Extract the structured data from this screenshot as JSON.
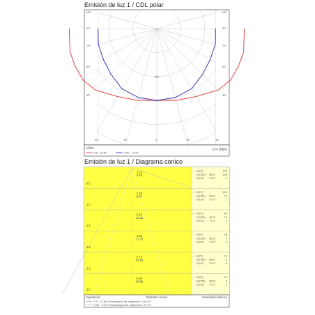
{
  "polar": {
    "title": "Emisión de luz 1 / CDL polar",
    "unit": "cd/klm",
    "efficiency": "η = 106%",
    "angle_labels": [
      "105°",
      "105°",
      "90°",
      "90°",
      "75°",
      "75°",
      "60°",
      "60°",
      "45°",
      "45°",
      "30°",
      "15°",
      "0°",
      "15°",
      "30°"
    ],
    "radial_labels": [
      "160",
      "240"
    ],
    "legend": [
      {
        "label": "C0 - C180",
        "color": "#e03030"
      },
      {
        "label": "C90 - C270",
        "color": "#2020b0"
      }
    ]
  },
  "conic": {
    "title": "Emisión de luz 1 / Diagrama conico",
    "highlight_color": "#ffff44",
    "pale_color": "#ffffcc",
    "footer": {
      "col1": "Separación",
      "col2": "Diametro conico",
      "col3": "Intensidad luminica"
    },
    "notes": [
      {
        "label": "C0 - C180 (Semiángulo de dispersión: 154.6°)",
        "color": "#999999"
      },
      {
        "label": "C90 - C270 (Semiángulo de dispersión: 97.6°)",
        "color": "#999999"
      }
    ],
    "key_labels": {
      "e0": "E(0°)",
      "ec90": "E(C90)",
      "ec0": "E(C0)",
      "angle": "48.9°",
      "angle2": "77.3°"
    }
  },
  "chart_data": [
    {
      "type": "line",
      "subtype": "polar",
      "title": "Emisión de luz 1 / CDL polar",
      "radial_unit": "cd/klm",
      "angle_range_deg": [
        -105,
        105
      ],
      "series": [
        {
          "name": "C0 - C180",
          "angles": [
            0,
            15,
            30,
            45,
            55,
            65,
            75,
            90
          ],
          "values": [
            240,
            248,
            262,
            290,
            300,
            300,
            300,
            292
          ]
        },
        {
          "name": "C90 - C270",
          "angles": [
            0,
            15,
            30,
            45,
            60,
            75,
            90
          ],
          "values": [
            240,
            238,
            232,
            216,
            206,
            202,
            196
          ]
        }
      ]
    },
    {
      "type": "table",
      "subtype": "conic",
      "title": "Emisión de luz 1 / Diagrama conico",
      "columns": [
        "Separación",
        "Diametro conico",
        "Intensidad luminica"
      ],
      "rows": [
        {
          "sep": "0.5",
          "d1": "1.16",
          "d2": "4.44",
          "e0": "700",
          "ec90": "109",
          "ec0": "4"
        },
        {
          "sep": "1.0",
          "d1": "2.29",
          "d2": "8.87",
          "e0": "192",
          "ec90": "27",
          "ec0": "1"
        },
        {
          "sep": "1.5",
          "d1": "3.44",
          "d2": "13.31",
          "e0": "85",
          "ec90": "12",
          "ec0": "0"
        },
        {
          "sep": "2.0",
          "d1": "4.59",
          "d2": "17.75",
          "e0": "48",
          "ec90": "7",
          "ec0": "0"
        },
        {
          "sep": "2.5",
          "d1": "5.73",
          "d2": "22.19",
          "e0": "31",
          "ec90": "4",
          "ec0": "0"
        },
        {
          "sep": "3.0",
          "d1": "6.88",
          "d2": "26.62",
          "e0": "21",
          "ec90": "3",
          "ec0": "0"
        }
      ]
    }
  ]
}
